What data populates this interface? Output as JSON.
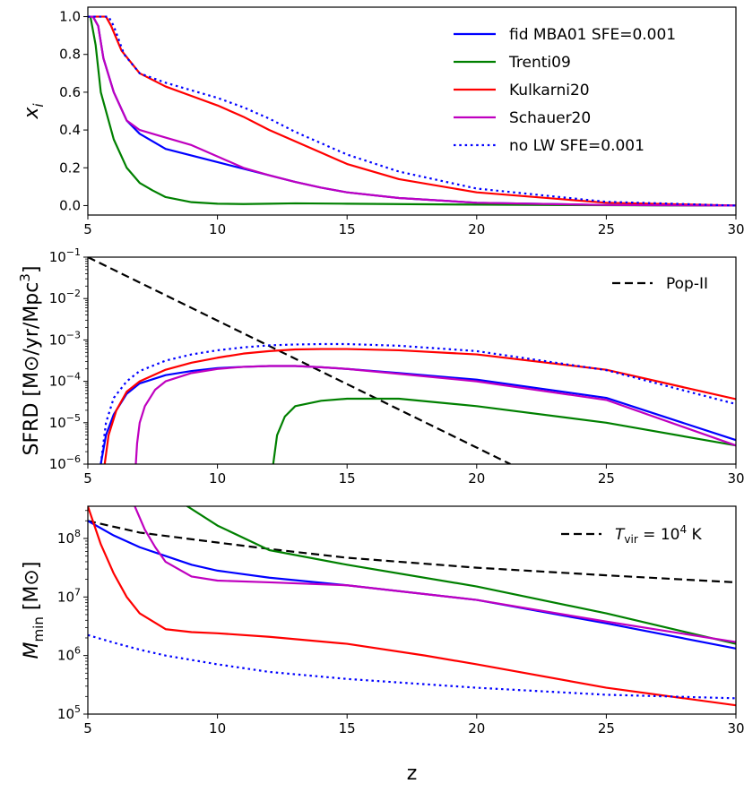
{
  "colors": {
    "fid": "#0000ff",
    "trenti": "#008000",
    "kulkarni": "#ff0000",
    "schauer": "#bf00bf",
    "nolw": "#0000ff",
    "ref": "#000000"
  },
  "chart_data": [
    {
      "id": "xi",
      "type": "line",
      "ylabel_var": "x",
      "ylabel_sub": "i",
      "xlim": [
        5,
        30
      ],
      "ylim": [
        -0.05,
        1.05
      ],
      "yscale": "linear",
      "xticks": [
        "5",
        "10",
        "15",
        "20",
        "25",
        "30"
      ],
      "yticks": [
        {
          "v": 0.0,
          "label": "0.0"
        },
        {
          "v": 0.2,
          "label": "0.2"
        },
        {
          "v": 0.4,
          "label": "0.4"
        },
        {
          "v": 0.6,
          "label": "0.6"
        },
        {
          "v": 0.8,
          "label": "0.8"
        },
        {
          "v": 1.0,
          "label": "1.0"
        }
      ],
      "legend_position": "top-right",
      "series": [
        {
          "key": "fid",
          "name": "fid MBA01 SFE=0.001",
          "style": "solid",
          "color_key": "fid",
          "x": [
            5.0,
            5.2,
            5.4,
            5.6,
            6.0,
            6.5,
            7.0,
            8,
            9,
            10,
            11,
            12,
            13,
            14,
            15,
            17,
            20,
            25,
            30
          ],
          "y": [
            1.0,
            1.0,
            0.95,
            0.78,
            0.6,
            0.45,
            0.38,
            0.3,
            0.265,
            0.23,
            0.195,
            0.16,
            0.125,
            0.095,
            0.07,
            0.04,
            0.015,
            0.003,
            0.0
          ]
        },
        {
          "key": "trenti",
          "name": "Trenti09",
          "style": "solid",
          "color_key": "trenti",
          "x": [
            5.0,
            5.1,
            5.3,
            5.5,
            6,
            6.5,
            7,
            7.5,
            8,
            9,
            10,
            11,
            12,
            13,
            15,
            20,
            25,
            30
          ],
          "y": [
            1.0,
            1.0,
            0.85,
            0.6,
            0.35,
            0.2,
            0.12,
            0.08,
            0.045,
            0.018,
            0.01,
            0.008,
            0.01,
            0.012,
            0.01,
            0.005,
            0.002,
            0.0
          ]
        },
        {
          "key": "kulkarni",
          "name": "Kulkarni20",
          "style": "solid",
          "color_key": "kulkarni",
          "x": [
            5.0,
            5.7,
            5.9,
            6.3,
            7,
            8,
            9,
            10,
            11,
            12,
            13,
            14,
            15,
            17,
            20,
            25,
            30
          ],
          "y": [
            1.0,
            1.0,
            0.95,
            0.82,
            0.7,
            0.63,
            0.58,
            0.53,
            0.47,
            0.4,
            0.34,
            0.28,
            0.22,
            0.14,
            0.07,
            0.015,
            0.0
          ]
        },
        {
          "key": "schauer",
          "name": "Schauer20",
          "style": "solid",
          "color_key": "schauer",
          "x": [
            5.0,
            5.2,
            5.4,
            5.6,
            6.0,
            6.5,
            7.0,
            8,
            9,
            10,
            11,
            12,
            13,
            14,
            15,
            17,
            20,
            25,
            30
          ],
          "y": [
            1.0,
            1.0,
            0.95,
            0.78,
            0.6,
            0.45,
            0.4,
            0.36,
            0.32,
            0.26,
            0.2,
            0.16,
            0.125,
            0.095,
            0.07,
            0.04,
            0.015,
            0.003,
            0.0
          ]
        },
        {
          "key": "nolw",
          "name": "no LW SFE=0.001",
          "style": "dotted",
          "color_key": "nolw",
          "x": [
            5.0,
            5.8,
            6.0,
            6.4,
            7,
            8,
            9,
            10,
            11,
            12,
            13,
            14,
            15,
            17,
            20,
            25,
            30
          ],
          "y": [
            1.0,
            1.0,
            0.95,
            0.8,
            0.7,
            0.65,
            0.61,
            0.57,
            0.52,
            0.46,
            0.39,
            0.33,
            0.27,
            0.18,
            0.09,
            0.02,
            0.0
          ]
        }
      ]
    },
    {
      "id": "sfrd",
      "type": "line",
      "ylabel_text": "SFRD",
      "ylabel_units": "M⊙/yr/Mpc",
      "ylabel_units_sup": "3",
      "xlim": [
        5,
        30
      ],
      "ylim_log10": [
        -6,
        -1
      ],
      "yscale": "log",
      "xticks": [
        "5",
        "10",
        "15",
        "20",
        "25",
        "30"
      ],
      "yticks": [
        {
          "exp": -6,
          "base": "10",
          "sup": "−6"
        },
        {
          "exp": -5,
          "base": "10",
          "sup": "−5"
        },
        {
          "exp": -4,
          "base": "10",
          "sup": "−4"
        },
        {
          "exp": -3,
          "base": "10",
          "sup": "−3"
        },
        {
          "exp": -2,
          "base": "10",
          "sup": "−2"
        },
        {
          "exp": -1,
          "base": "10",
          "sup": "−1"
        }
      ],
      "legend_position": "top-right",
      "reference": {
        "name": "Pop-II",
        "style": "dashed",
        "color_key": "ref",
        "x": [
          5.0,
          21.3
        ],
        "log10y": [
          -1.0,
          -6.0
        ]
      },
      "series": [
        {
          "key": "fid",
          "color_key": "fid",
          "style": "solid",
          "x": [
            5.5,
            5.7,
            6.0,
            6.5,
            7,
            8,
            9,
            10,
            11,
            12,
            13,
            14,
            15,
            17,
            20,
            25,
            30
          ],
          "log10y": [
            -6.0,
            -5.3,
            -4.8,
            -4.3,
            -4.05,
            -3.85,
            -3.75,
            -3.68,
            -3.65,
            -3.63,
            -3.63,
            -3.66,
            -3.7,
            -3.8,
            -3.96,
            -4.4,
            -5.42
          ]
        },
        {
          "key": "trenti",
          "color_key": "trenti",
          "style": "solid",
          "x": [
            12.15,
            12.3,
            12.6,
            13,
            14,
            15,
            17,
            20,
            25,
            30
          ],
          "log10y": [
            -6.0,
            -5.3,
            -4.85,
            -4.6,
            -4.47,
            -4.42,
            -4.42,
            -4.6,
            -5.0,
            -5.55
          ]
        },
        {
          "key": "kulkarni",
          "color_key": "kulkarni",
          "style": "solid",
          "x": [
            5.65,
            5.8,
            6.1,
            6.5,
            7,
            8,
            9,
            10,
            11,
            12,
            13,
            14,
            15,
            17,
            20,
            25,
            30
          ],
          "log10y": [
            -6.0,
            -5.3,
            -4.7,
            -4.25,
            -4.0,
            -3.72,
            -3.55,
            -3.43,
            -3.33,
            -3.27,
            -3.23,
            -3.22,
            -3.22,
            -3.25,
            -3.35,
            -3.72,
            -4.43
          ]
        },
        {
          "key": "schauer",
          "color_key": "schauer",
          "style": "solid",
          "x": [
            6.85,
            6.9,
            7.0,
            7.2,
            7.6,
            8,
            9,
            10,
            11,
            12,
            13,
            14,
            15,
            17,
            20,
            25,
            30
          ],
          "log10y": [
            -6.0,
            -5.5,
            -5.0,
            -4.6,
            -4.2,
            -4.0,
            -3.8,
            -3.7,
            -3.65,
            -3.63,
            -3.63,
            -3.66,
            -3.7,
            -3.82,
            -4.0,
            -4.45,
            -5.55
          ]
        },
        {
          "key": "nolw",
          "color_key": "nolw",
          "style": "dotted",
          "x": [
            5.5,
            5.7,
            6.0,
            6.5,
            7,
            8,
            9,
            10,
            11,
            12,
            13,
            14,
            15,
            17,
            20,
            25,
            30
          ],
          "log10y": [
            -6.0,
            -5.0,
            -4.4,
            -4.0,
            -3.75,
            -3.5,
            -3.35,
            -3.25,
            -3.18,
            -3.13,
            -3.11,
            -3.1,
            -3.1,
            -3.14,
            -3.27,
            -3.73,
            -4.55
          ]
        }
      ]
    },
    {
      "id": "mmin",
      "type": "line",
      "ylabel_var": "M",
      "ylabel_sub": "min",
      "ylabel_units": "M⊙",
      "xlabel": "z",
      "xlim": [
        5,
        30
      ],
      "ylim_log10": [
        5,
        8.55
      ],
      "yscale": "log",
      "xticks": [
        "5",
        "10",
        "15",
        "20",
        "25",
        "30"
      ],
      "yticks": [
        {
          "exp": 5,
          "base": "10",
          "sup": "5"
        },
        {
          "exp": 6,
          "base": "10",
          "sup": "6"
        },
        {
          "exp": 7,
          "base": "10",
          "sup": "7"
        },
        {
          "exp": 8,
          "base": "10",
          "sup": "8"
        }
      ],
      "legend_position": "top-right",
      "reference": {
        "name_var": "T",
        "name_sub": "vir",
        "name_rest": " = 10",
        "name_sup": "4",
        "name_unit": " K",
        "style": "dashed",
        "color_key": "ref",
        "x": [
          5,
          7,
          10,
          12,
          15,
          20,
          25,
          30
        ],
        "log10y": [
          8.3,
          8.1,
          7.93,
          7.82,
          7.67,
          7.5,
          7.37,
          7.25
        ]
      },
      "series": [
        {
          "key": "fid",
          "color_key": "fid",
          "style": "solid",
          "x": [
            5,
            6,
            7,
            8,
            9,
            10,
            12,
            15,
            20,
            25,
            30
          ],
          "log10y": [
            8.3,
            8.05,
            7.85,
            7.7,
            7.55,
            7.45,
            7.33,
            7.2,
            6.95,
            6.55,
            6.12
          ]
        },
        {
          "key": "trenti",
          "color_key": "trenti",
          "style": "solid",
          "x": [
            8.8,
            10,
            12,
            15,
            20,
            25,
            30
          ],
          "log10y": [
            8.56,
            8.22,
            7.8,
            7.55,
            7.18,
            6.72,
            6.2
          ]
        },
        {
          "key": "kulkarni",
          "color_key": "kulkarni",
          "style": "solid",
          "x": [
            5,
            5.5,
            6,
            6.5,
            7,
            8,
            9,
            10,
            12,
            15,
            18,
            20,
            25,
            30
          ],
          "log10y": [
            8.55,
            7.9,
            7.4,
            7.0,
            6.72,
            6.45,
            6.4,
            6.38,
            6.32,
            6.2,
            6.0,
            5.85,
            5.45,
            5.15
          ]
        },
        {
          "key": "schauer",
          "color_key": "schauer",
          "style": "solid",
          "x": [
            6.8,
            7.2,
            7.6,
            8,
            9,
            10,
            12,
            15,
            20,
            25,
            30
          ],
          "log10y": [
            8.56,
            8.15,
            7.85,
            7.6,
            7.35,
            7.28,
            7.25,
            7.2,
            6.95,
            6.58,
            6.23
          ]
        },
        {
          "key": "nolw",
          "color_key": "nolw",
          "style": "dotted",
          "x": [
            5,
            6,
            7,
            8,
            10,
            12,
            15,
            20,
            25,
            30
          ],
          "log10y": [
            6.35,
            6.22,
            6.1,
            6.0,
            5.85,
            5.72,
            5.6,
            5.45,
            5.33,
            5.27
          ]
        }
      ]
    }
  ]
}
